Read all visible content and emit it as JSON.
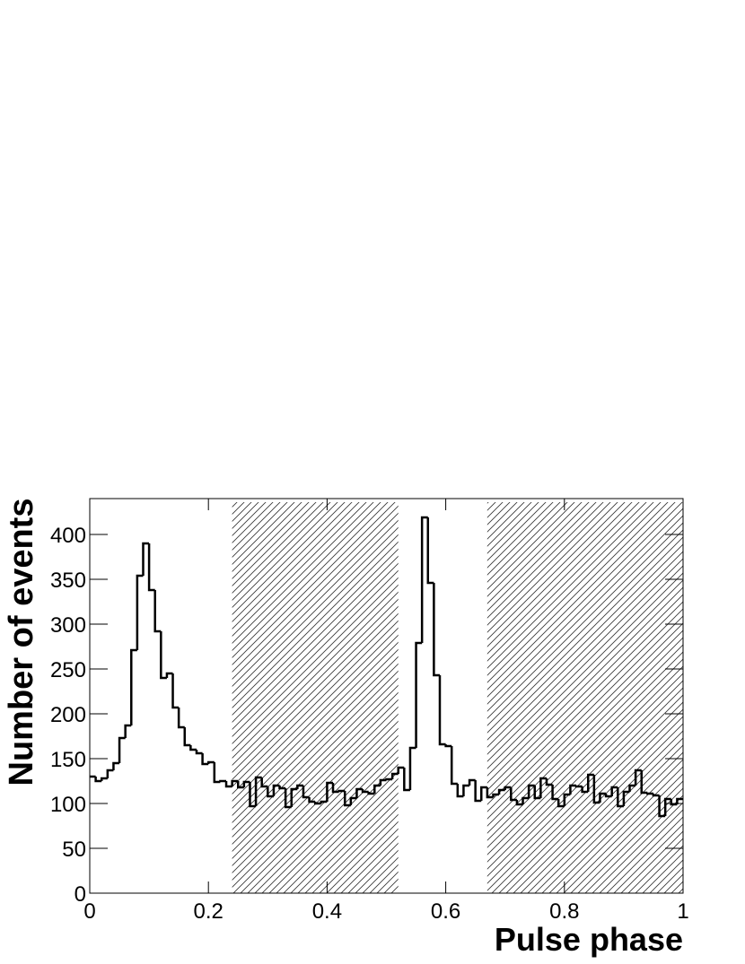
{
  "chart_data": {
    "type": "histogram",
    "xlabel": "Pulse phase",
    "ylabel": "Number of events",
    "bins": [
      0,
      0.01,
      0.02,
      0.03,
      0.04,
      0.05,
      0.06,
      0.07,
      0.08,
      0.09,
      0.1,
      0.11,
      0.12,
      0.13,
      0.14,
      0.15,
      0.16,
      0.17,
      0.18,
      0.19,
      0.2,
      0.21,
      0.22,
      0.23,
      0.24,
      0.25,
      0.26,
      0.27,
      0.28,
      0.29,
      0.3,
      0.31,
      0.32,
      0.33,
      0.34,
      0.35,
      0.36,
      0.37,
      0.38,
      0.39,
      0.4,
      0.41,
      0.42,
      0.43,
      0.44,
      0.45,
      0.46,
      0.47,
      0.48,
      0.49,
      0.5,
      0.51,
      0.52,
      0.53,
      0.54,
      0.55,
      0.56,
      0.57,
      0.58,
      0.59,
      0.6,
      0.61,
      0.62,
      0.63,
      0.64,
      0.65,
      0.66,
      0.67,
      0.68,
      0.69,
      0.7,
      0.71,
      0.72,
      0.73,
      0.74,
      0.75,
      0.76,
      0.77,
      0.78,
      0.79,
      0.8,
      0.81,
      0.82,
      0.83,
      0.84,
      0.85,
      0.86,
      0.87,
      0.88,
      0.89,
      0.9,
      0.91,
      0.92,
      0.93,
      0.94,
      0.95,
      0.96,
      0.97,
      0.98,
      0.99,
      1
    ],
    "values": [
      130,
      125,
      128,
      137,
      145,
      173,
      187,
      271,
      354,
      390,
      338,
      292,
      240,
      245,
      207,
      185,
      165,
      160,
      156,
      144,
      146,
      124,
      125,
      119,
      125,
      118,
      124,
      97,
      129,
      119,
      108,
      120,
      117,
      96,
      116,
      120,
      107,
      102,
      100,
      102,
      123,
      113,
      114,
      98,
      106,
      116,
      113,
      111,
      120,
      126,
      127,
      133,
      140,
      115,
      162,
      279,
      419,
      346,
      243,
      166,
      164,
      122,
      108,
      120,
      126,
      103,
      118,
      107,
      110,
      115,
      118,
      104,
      99,
      106,
      120,
      106,
      128,
      121,
      105,
      97,
      110,
      120,
      119,
      113,
      132,
      101,
      111,
      108,
      118,
      97,
      113,
      120,
      137,
      112,
      111,
      109,
      86,
      105,
      99,
      105
    ],
    "color": "#000000",
    "shaded_regions": [
      [
        0.24,
        0.52
      ],
      [
        0.67,
        1.0
      ]
    ],
    "xlim": [
      0,
      1
    ],
    "ylim": [
      0,
      440
    ],
    "xticks": [
      0,
      0.2,
      0.4,
      0.6,
      0.8,
      1
    ],
    "yticks": [
      0,
      50,
      100,
      150,
      200,
      250,
      300,
      350,
      400
    ]
  }
}
